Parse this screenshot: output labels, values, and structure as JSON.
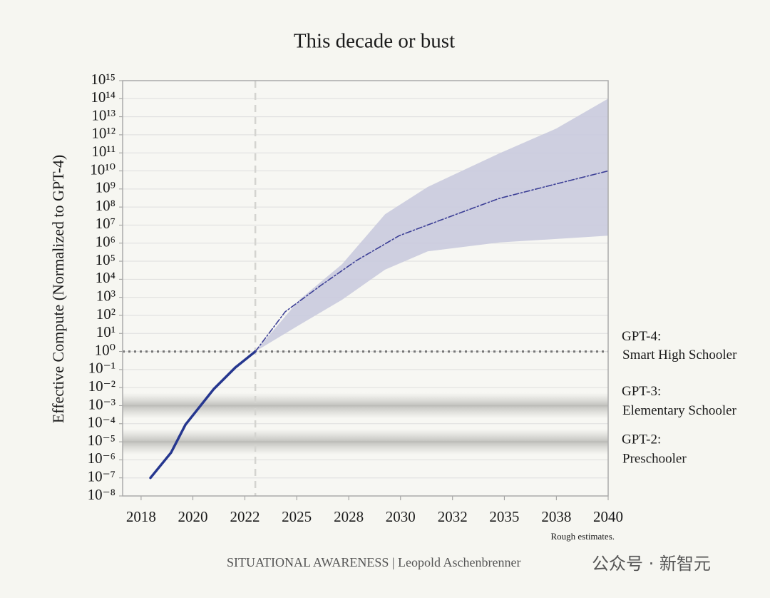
{
  "chart_data": {
    "type": "line",
    "title": "This decade or bust",
    "ylabel": "Effective Compute (Normalized to GPT-4)",
    "note": "Rough estimates.",
    "source": "SITUATIONAL AWARENESS | Leopold Aschenbrenner",
    "watermark": "公众号 · 新智元",
    "log_y": true,
    "grid": true,
    "xlim": [
      2017.13,
      2040
    ],
    "ylim": [
      1e-08,
      1000000000000000.0
    ],
    "xticks": [
      {
        "value": 2018,
        "label": "2018"
      },
      {
        "value": 2020.44,
        "label": "2020"
      },
      {
        "value": 2022.89,
        "label": "2022"
      },
      {
        "value": 2025.33,
        "label": "2025"
      },
      {
        "value": 2027.78,
        "label": "2028"
      },
      {
        "value": 2030.22,
        "label": "2030"
      },
      {
        "value": 2032.67,
        "label": "2032"
      },
      {
        "value": 2035.11,
        "label": "2035"
      },
      {
        "value": 2037.56,
        "label": "2038"
      },
      {
        "value": 2040,
        "label": "2040"
      }
    ],
    "yticks": [
      {
        "value": 1e-08,
        "label": "10⁻⁸"
      },
      {
        "value": 1e-07,
        "label": "10⁻⁷"
      },
      {
        "value": 1e-06,
        "label": "10⁻⁶"
      },
      {
        "value": 1e-05,
        "label": "10⁻⁵"
      },
      {
        "value": 0.0001,
        "label": "10⁻⁴"
      },
      {
        "value": 0.001,
        "label": "10⁻³"
      },
      {
        "value": 0.01,
        "label": "10⁻²"
      },
      {
        "value": 0.1,
        "label": "10⁻¹"
      },
      {
        "value": 1,
        "label": "10⁰"
      },
      {
        "value": 10.0,
        "label": "10¹"
      },
      {
        "value": 100.0,
        "label": "10²"
      },
      {
        "value": 1000.0,
        "label": "10³"
      },
      {
        "value": 10000.0,
        "label": "10⁴"
      },
      {
        "value": 100000.0,
        "label": "10⁵"
      },
      {
        "value": 1000000.0,
        "label": "10⁶"
      },
      {
        "value": 10000000.0,
        "label": "10⁷"
      },
      {
        "value": 100000000.0,
        "label": "10⁸"
      },
      {
        "value": 1000000000.0,
        "label": "10⁹"
      },
      {
        "value": 10000000000.0,
        "label": "10¹⁰"
      },
      {
        "value": 100000000000.0,
        "label": "10¹¹"
      },
      {
        "value": 1000000000000.0,
        "label": "10¹²"
      },
      {
        "value": 10000000000000.0,
        "label": "10¹³"
      },
      {
        "value": 100000000000000.0,
        "label": "10¹⁴"
      },
      {
        "value": 1000000000000000.0,
        "label": "10¹⁵"
      }
    ],
    "vline": 2023.38,
    "band": {
      "color": "#c9cade",
      "x": [
        2023.38,
        2025.46,
        2027.47,
        2029.49,
        2031.5,
        2034.87,
        2037.55,
        2040
      ],
      "upper": [
        1,
        740,
        69000,
        40000000.0,
        1300000000.0,
        93000000000.0,
        2200000000000.0,
        100000000000000.0
      ],
      "lower": [
        1,
        30,
        740,
        34000,
        350000,
        1100000.0,
        1700000.0,
        2600000.0
      ]
    },
    "series": [
      {
        "color": "#26378f",
        "style": "solid",
        "x": [
          2018.44,
          2019.41,
          2020.09,
          2021.43,
          2022.44,
          2023.38
        ],
        "values": [
          1e-07,
          2.5e-06,
          8.9e-05,
          0.0085,
          0.13,
          1
        ]
      },
      {
        "color": "#3c3f96",
        "style": "dashdot",
        "x": [
          2023.38,
          2024.79,
          2026.47,
          2028.15,
          2030.16,
          2032.85,
          2034.87,
          2037.55,
          2040
        ],
        "values": [
          1,
          160,
          4600,
          110000,
          2600000.0,
          40000000.0,
          300000000.0,
          1900000000.0,
          10000000000.0
        ]
      }
    ],
    "annotations": [
      {
        "value": 1,
        "style": "dotted",
        "label": [
          "GPT-4:",
          "Smart High Schooler"
        ]
      },
      {
        "value": 0.001,
        "style": "shade",
        "label": [
          "GPT-3:",
          "Elementary Schooler"
        ]
      },
      {
        "value": 1e-05,
        "style": "shade",
        "label": [
          "GPT-2:",
          "Preschooler"
        ]
      }
    ]
  }
}
